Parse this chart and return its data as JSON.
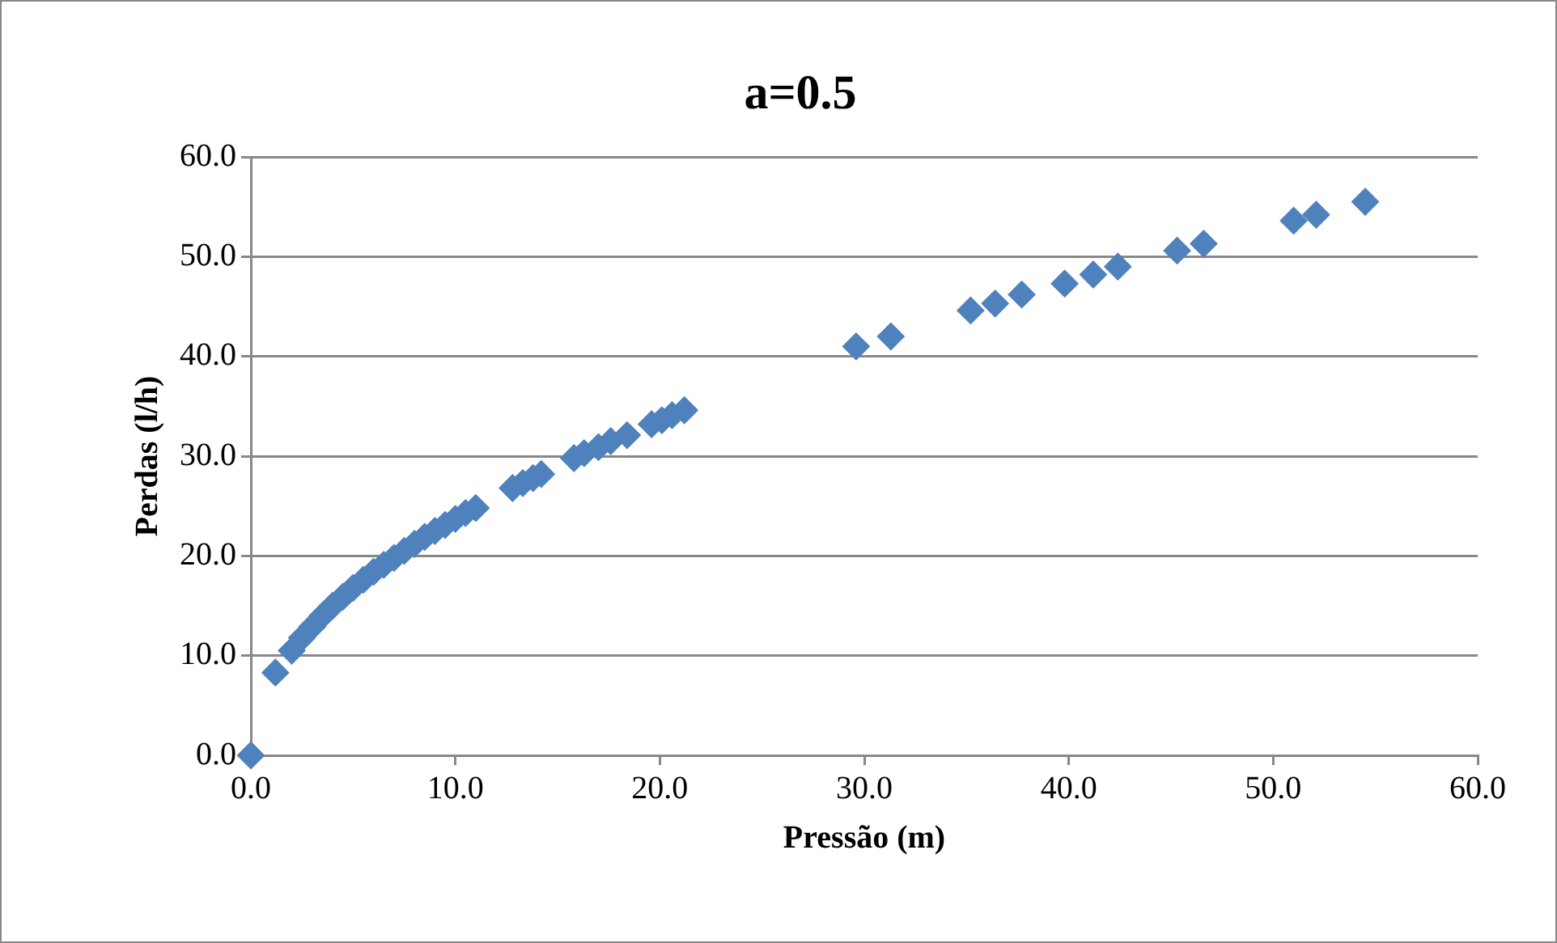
{
  "chart_data": {
    "type": "scatter",
    "title": "a=0.5",
    "xlabel": "Pressão (m)",
    "ylabel": "Perdas (l/h)",
    "series": [
      {
        "color": "#4f81bd",
        "x": [
          0,
          1.2,
          2,
          2.5,
          3,
          3.5,
          4,
          4.5,
          5,
          5.5,
          6,
          6.5,
          7,
          7.5,
          8,
          8.5,
          9,
          9.5,
          10,
          10.5,
          11,
          12.8,
          13.3,
          13.8,
          14.2,
          15.8,
          16.3,
          17,
          17.6,
          18.4,
          19.6,
          20.1,
          20.6,
          21.2,
          29.6,
          31.3,
          35.2,
          36.4,
          37.7,
          39.8,
          41.2,
          42.4,
          45.3,
          46.6,
          51,
          52.1,
          54.5
        ],
        "values": [
          0,
          8.3,
          10.5,
          11.8,
          12.9,
          14,
          15,
          15.9,
          16.8,
          17.6,
          18.4,
          19.1,
          19.8,
          20.5,
          21.2,
          21.9,
          22.5,
          23.1,
          23.7,
          24.3,
          24.8,
          26.8,
          27.3,
          27.8,
          28.2,
          29.8,
          30.3,
          30.9,
          31.5,
          32.1,
          33.2,
          33.6,
          34.1,
          34.6,
          41,
          42,
          44.6,
          45.3,
          46.2,
          47.3,
          48.2,
          49,
          50.6,
          51.3,
          53.6,
          54.2,
          55.5
        ]
      }
    ],
    "xlim": [
      0,
      60
    ],
    "xticks": [
      {
        "value": 0,
        "label": "0.0"
      },
      {
        "value": 10,
        "label": "10.0"
      },
      {
        "value": 20,
        "label": "20.0"
      },
      {
        "value": 30,
        "label": "30.0"
      },
      {
        "value": 40,
        "label": "40.0"
      },
      {
        "value": 50,
        "label": "50.0"
      },
      {
        "value": 60,
        "label": "60.0"
      }
    ],
    "ylim": [
      0,
      60
    ],
    "yticks": [
      {
        "value": 0,
        "label": "0.0"
      },
      {
        "value": 10,
        "label": "10.0"
      },
      {
        "value": 20,
        "label": "20.0"
      },
      {
        "value": 30,
        "label": "30.0"
      },
      {
        "value": 40,
        "label": "40.0"
      },
      {
        "value": 50,
        "label": "50.0"
      },
      {
        "value": 60,
        "label": "60.0"
      }
    ],
    "grid": "y",
    "marker": "diamond",
    "legend": false
  }
}
